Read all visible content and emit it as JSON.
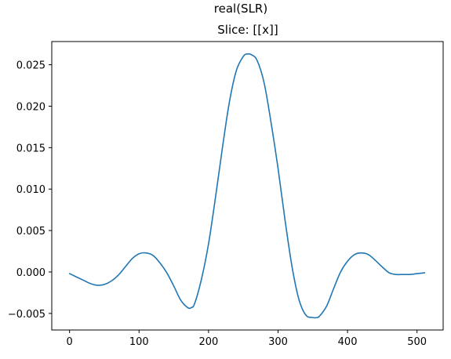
{
  "chart_data": {
    "type": "line",
    "suptitle": "real(SLR)",
    "title": "Slice: [[x]]",
    "xlabel": "",
    "ylabel": "",
    "xlim": [
      -25.6,
      537.6
    ],
    "ylim": [
      -0.007,
      0.0278
    ],
    "x_ticks": [
      0,
      100,
      200,
      300,
      400,
      500
    ],
    "x_tick_labels": [
      "0",
      "100",
      "200",
      "300",
      "400",
      "500"
    ],
    "y_ticks": [
      -0.005,
      0.0,
      0.005,
      0.01,
      0.015,
      0.02,
      0.025
    ],
    "y_tick_labels": [
      "−0.005",
      "0.000",
      "0.005",
      "0.010",
      "0.015",
      "0.020",
      "0.025"
    ],
    "grid": false,
    "series": [
      {
        "color": "#1f77b4",
        "x": [
          0,
          20,
          30,
          40,
          50,
          60,
          70,
          80,
          90,
          100,
          110,
          120,
          130,
          140,
          150,
          160,
          170,
          175,
          180,
          190,
          200,
          210,
          220,
          230,
          240,
          250,
          256,
          262,
          270,
          280,
          290,
          300,
          310,
          320,
          330,
          340,
          350,
          356,
          360,
          370,
          380,
          390,
          400,
          410,
          420,
          430,
          440,
          450,
          460,
          470,
          480,
          490,
          500,
          511
        ],
        "y": [
          -0.0002,
          -0.001,
          -0.0014,
          -0.0016,
          -0.0015,
          -0.0011,
          -0.0004,
          0.0006,
          0.0016,
          0.0022,
          0.0023,
          0.002,
          0.0011,
          -0.0001,
          -0.0017,
          -0.0034,
          -0.0043,
          -0.0043,
          -0.0038,
          -0.0008,
          0.0034,
          0.009,
          0.015,
          0.0205,
          0.0243,
          0.026,
          0.0263,
          0.0262,
          0.0255,
          0.0228,
          0.018,
          0.0125,
          0.0063,
          0.0007,
          -0.0033,
          -0.0052,
          -0.0055,
          -0.0055,
          -0.0053,
          -0.0041,
          -0.002,
          0.0,
          0.0013,
          0.0021,
          0.0023,
          0.0021,
          0.0014,
          0.0006,
          -0.0001,
          -0.0003,
          -0.0003,
          -0.0003,
          -0.0002,
          -0.0001
        ]
      }
    ]
  }
}
